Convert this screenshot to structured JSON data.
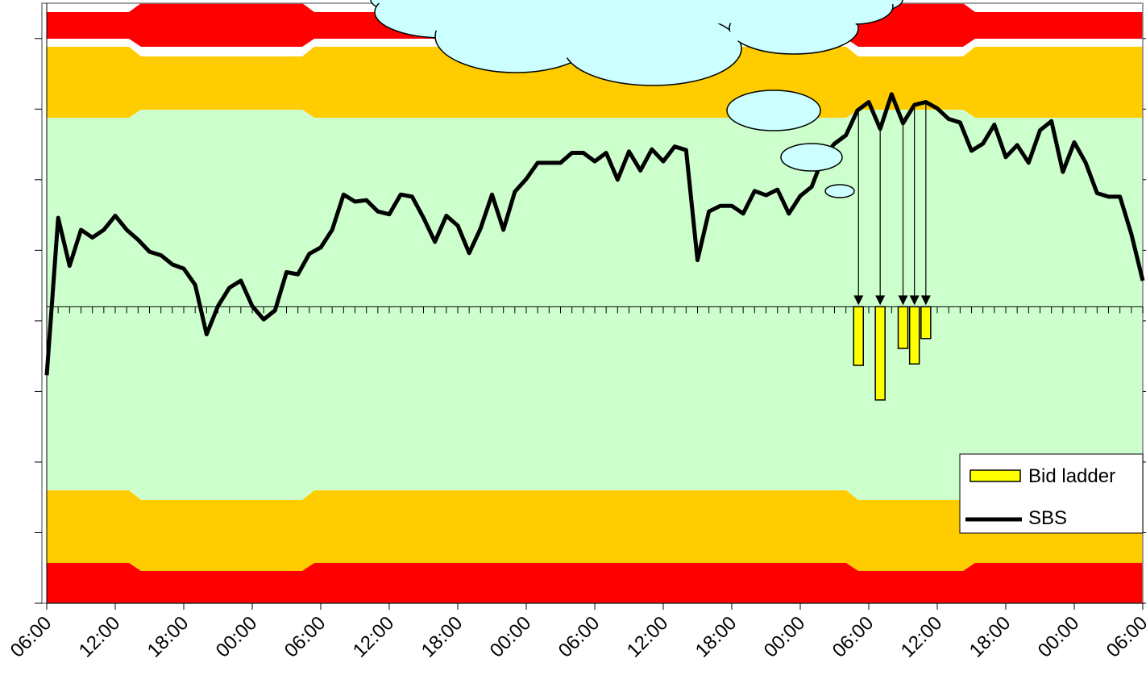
{
  "chart_data": {
    "type": "line",
    "xlim": [
      0,
      96
    ],
    "xticks": [
      {
        "value": 0,
        "label": "06:00"
      },
      {
        "value": 6,
        "label": "12:00"
      },
      {
        "value": 12,
        "label": "18:00"
      },
      {
        "value": 18,
        "label": "00:00"
      },
      {
        "value": 24,
        "label": "06:00"
      },
      {
        "value": 30,
        "label": "12:00"
      },
      {
        "value": 36,
        "label": "18:00"
      },
      {
        "value": 42,
        "label": "00:00"
      },
      {
        "value": 48,
        "label": "06:00"
      },
      {
        "value": 54,
        "label": "12:00"
      },
      {
        "value": 60,
        "label": "18:00"
      },
      {
        "value": 66,
        "label": "00:00"
      },
      {
        "value": 72,
        "label": "06:00"
      },
      {
        "value": 78,
        "label": "12:00"
      },
      {
        "value": 84,
        "label": "18:00"
      },
      {
        "value": 90,
        "label": "00:00"
      },
      {
        "value": 96,
        "label": "06:00"
      }
    ],
    "ylim": [
      0,
      8.5
    ],
    "yticks": [
      0,
      1,
      2,
      3,
      4,
      5,
      6,
      7,
      8
    ],
    "reference_line": 4.2,
    "legend": "bottom-right",
    "series": [
      {
        "name": "Bid ladder",
        "type": "bar",
        "color": "#ffff00",
        "x": [
          71.1,
          73,
          75,
          76,
          77
        ],
        "values": [
          3.37,
          2.88,
          3.61,
          3.39,
          3.75
        ]
      },
      {
        "name": "SBS",
        "type": "line",
        "color": "#000000",
        "values": [
          3.23,
          5.46,
          4.78,
          5.29,
          5.18,
          5.29,
          5.49,
          5.29,
          5.15,
          4.98,
          4.93,
          4.8,
          4.74,
          4.51,
          3.81,
          4.21,
          4.47,
          4.57,
          4.21,
          4.02,
          4.15,
          4.69,
          4.66,
          4.95,
          5.04,
          5.29,
          5.79,
          5.69,
          5.71,
          5.55,
          5.51,
          5.79,
          5.76,
          5.46,
          5.12,
          5.49,
          5.35,
          4.96,
          5.31,
          5.79,
          5.29,
          5.83,
          6.01,
          6.24,
          6.24,
          6.24,
          6.38,
          6.38,
          6.26,
          6.38,
          6.0,
          6.4,
          6.13,
          6.43,
          6.26,
          6.47,
          6.42,
          4.86,
          5.55,
          5.63,
          5.63,
          5.52,
          5.84,
          5.78,
          5.86,
          5.52,
          5.77,
          5.9,
          6.32,
          6.51,
          6.63,
          6.98,
          7.1,
          6.72,
          7.21,
          6.8,
          7.06,
          7.1,
          7.01,
          6.86,
          6.81,
          6.41,
          6.51,
          6.78,
          6.32,
          6.49,
          6.24,
          6.7,
          6.83,
          6.11,
          6.53,
          6.24,
          5.81,
          5.76,
          5.76,
          5.23,
          4.57
        ]
      }
    ]
  }
}
